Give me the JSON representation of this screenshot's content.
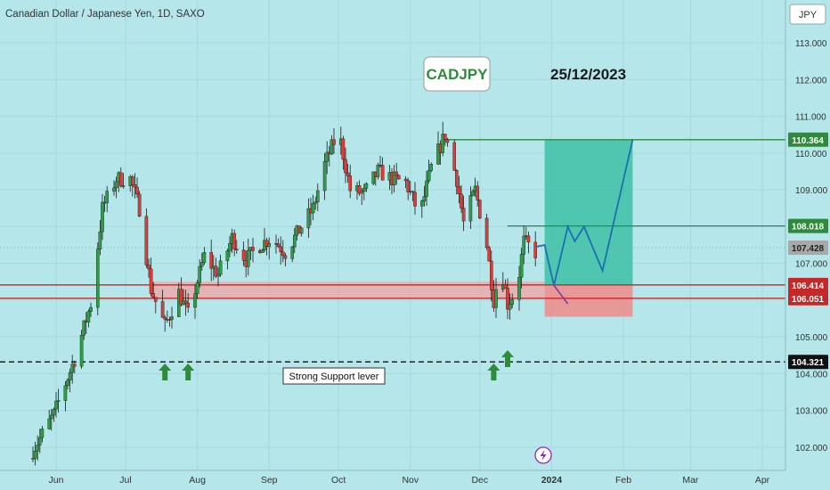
{
  "header": {
    "title": "Canadian Dollar / Japanese Yen, 1D, SAXO"
  },
  "currency_button": "JPY",
  "annotations": {
    "symbol_box": "CADJPY",
    "date_text": "25/12/2023",
    "support_text": "Strong Support lever"
  },
  "colors": {
    "background": "#b4e6ea",
    "up_candle": "#2e9e49",
    "down_candle": "#e53935",
    "support_zone": "#f2a3a3",
    "target_zone": "#3dbfa6",
    "stop_zone": "#f08a8a",
    "projection_line": "#1e6fb0",
    "resistance_line": "#2e8b3a",
    "zone_line": "#c62828",
    "arrow": "#2e8b3a"
  },
  "chart_data": {
    "type": "candlestick",
    "title": "Canadian Dollar / Japanese Yen, 1D, SAXO",
    "y_axis": {
      "range": [
        101.6,
        113.6
      ],
      "ticks": [
        "113.000",
        "112.000",
        "111.000",
        "110.000",
        "109.000",
        "108.000",
        "107.000",
        "106.000",
        "105.000",
        "104.000",
        "103.000",
        "102.000"
      ],
      "price_labels": [
        {
          "value": "110.364",
          "style": "green"
        },
        {
          "value": "108.018",
          "style": "green"
        },
        {
          "value": "107.428",
          "style": "gray"
        },
        {
          "value": "106.414",
          "style": "red"
        },
        {
          "value": "106.051",
          "style": "red"
        },
        {
          "value": "104.321",
          "style": "black"
        }
      ]
    },
    "x_axis": {
      "ticks": [
        "Jun",
        "Jul",
        "Aug",
        "Sep",
        "Oct",
        "Nov",
        "Dec",
        "2024",
        "Feb",
        "Mar",
        "Apr"
      ]
    },
    "levels": {
      "resistance_target": 110.364,
      "resistance_mid": 108.018,
      "current_price": 107.428,
      "zone_top": 106.414,
      "zone_bottom": 106.051,
      "strong_support": 104.321
    },
    "path_points": [
      [
        "2023-05-20",
        101.7
      ],
      [
        "2023-05-31",
        102.9
      ],
      [
        "2023-06-09",
        104.4
      ],
      [
        "2023-06-16",
        105.9
      ],
      [
        "2023-06-21",
        108.5
      ],
      [
        "2023-06-27",
        109.3
      ],
      [
        "2023-07-03",
        109.3
      ],
      [
        "2023-07-07",
        108.5
      ],
      [
        "2023-07-12",
        106.3
      ],
      [
        "2023-07-18",
        105.3
      ],
      [
        "2023-07-24",
        106.2
      ],
      [
        "2023-07-28",
        105.6
      ],
      [
        "2023-08-04",
        107.2
      ],
      [
        "2023-08-10",
        106.7
      ],
      [
        "2023-08-16",
        107.7
      ],
      [
        "2023-08-22",
        107.1
      ],
      [
        "2023-08-28",
        107.5
      ],
      [
        "2023-09-02",
        107.7
      ],
      [
        "2023-09-08",
        107.3
      ],
      [
        "2023-09-14",
        107.9
      ],
      [
        "2023-09-20",
        108.5
      ],
      [
        "2023-09-25",
        109.7
      ],
      [
        "2023-10-01",
        110.6
      ],
      [
        "2023-10-06",
        109.0
      ],
      [
        "2023-10-12",
        108.9
      ],
      [
        "2023-10-18",
        109.5
      ],
      [
        "2023-10-24",
        109.3
      ],
      [
        "2023-10-30",
        109.2
      ],
      [
        "2023-11-05",
        108.3
      ],
      [
        "2023-11-10",
        109.6
      ],
      [
        "2023-11-16",
        110.5
      ],
      [
        "2023-11-21",
        109.3
      ],
      [
        "2023-11-24",
        108.1
      ],
      [
        "2023-11-29",
        109.0
      ],
      [
        "2023-12-04",
        107.5
      ],
      [
        "2023-12-07",
        106.0
      ],
      [
        "2023-12-10",
        107.0
      ],
      [
        "2023-12-13",
        105.9
      ],
      [
        "2023-12-17",
        106.3
      ],
      [
        "2023-12-20",
        107.6
      ],
      [
        "2023-12-25",
        107.3
      ]
    ],
    "projection": [
      [
        "2023-12-25",
        107.45
      ],
      [
        "2023-12-29",
        107.5
      ],
      [
        "2024-01-02",
        106.4
      ],
      [
        "2024-01-08",
        108.0
      ],
      [
        "2024-01-11",
        107.6
      ],
      [
        "2024-01-15",
        108.0
      ],
      [
        "2024-01-23",
        106.8
      ],
      [
        "2024-02-05",
        110.364
      ]
    ],
    "projection_early": [
      [
        "2024-01-02",
        106.4
      ],
      [
        "2024-01-08",
        105.9
      ]
    ],
    "range_box": {
      "x0": "2023-12-29",
      "x1": "2024-02-05",
      "entry": 106.414,
      "target": 110.364,
      "stop": 105.55
    },
    "support_zone_box": {
      "x0": "2023-07-12",
      "x1": "2023-12-29",
      "top": 106.5,
      "bottom": 106.05
    },
    "resistance_line_x0": "2023-11-16",
    "resistance_mid_x0": "2023-12-13",
    "arrows": [
      "2023-07-18",
      "2023-07-28",
      "2023-12-07",
      "2023-12-13"
    ]
  }
}
